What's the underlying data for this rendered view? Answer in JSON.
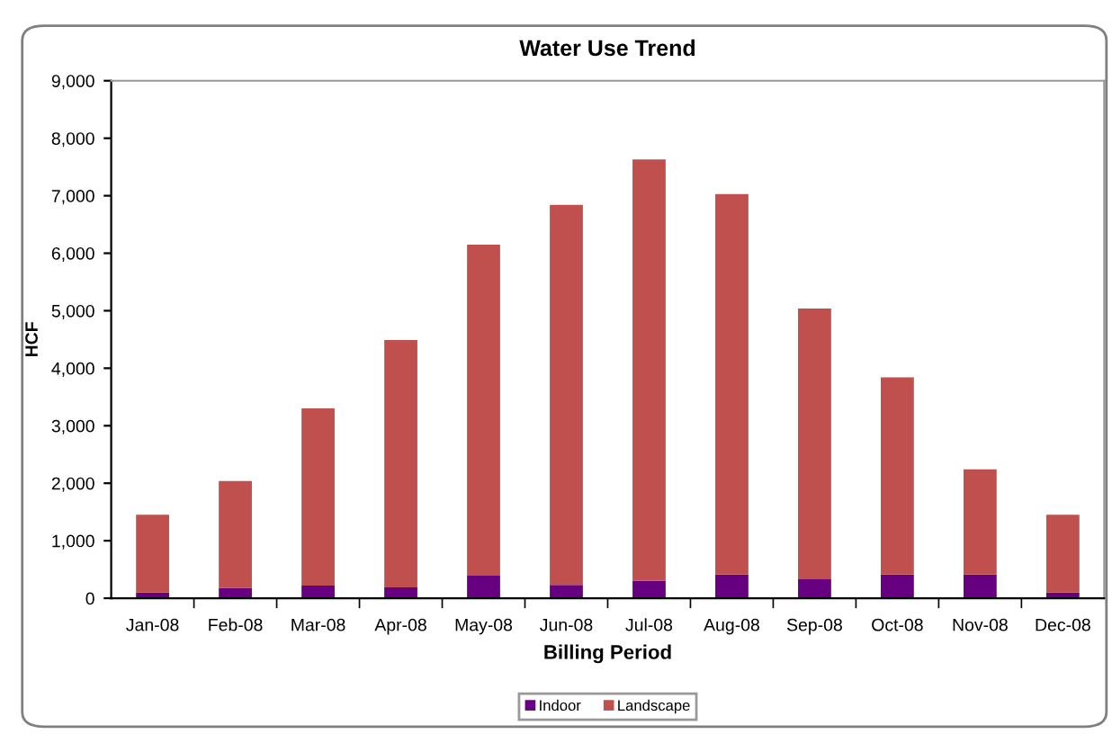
{
  "chart_data": {
    "type": "bar",
    "title": "Water Use Trend",
    "xlabel": "Billing Period",
    "ylabel": "HCF",
    "categories": [
      "Jan-08",
      "Feb-08",
      "Mar-08",
      "Apr-08",
      "May-08",
      "Jun-08",
      "Jul-08",
      "Aug-08",
      "Sep-08",
      "Oct-08",
      "Nov-08",
      "Dec-08"
    ],
    "stacked": true,
    "series": [
      {
        "name": "Indoor",
        "color": "#660080",
        "values": [
          100,
          180,
          220,
          190,
          390,
          230,
          300,
          410,
          330,
          410,
          410,
          100
        ]
      },
      {
        "name": "Landscape",
        "color": "#c0504d",
        "values": [
          1350,
          1860,
          3080,
          4300,
          5760,
          6610,
          7330,
          6620,
          4710,
          3430,
          1830,
          1350
        ]
      }
    ],
    "ylim": [
      0,
      9000
    ],
    "yticks": [
      {
        "value": 0,
        "label": "0"
      },
      {
        "value": 1000,
        "label": "1,000"
      },
      {
        "value": 2000,
        "label": "2,000"
      },
      {
        "value": 3000,
        "label": "3,000"
      },
      {
        "value": 4000,
        "label": "4,000"
      },
      {
        "value": 5000,
        "label": "5,000"
      },
      {
        "value": 6000,
        "label": "6,000"
      },
      {
        "value": 7000,
        "label": "7,000"
      },
      {
        "value": 8000,
        "label": "8,000"
      },
      {
        "value": 9000,
        "label": "9,000"
      }
    ],
    "legend": "bottom"
  }
}
